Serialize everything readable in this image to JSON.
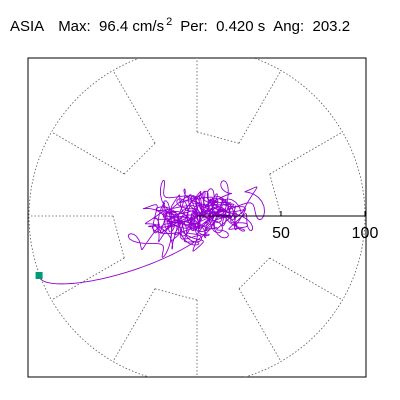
{
  "header": {
    "station": "ASIA",
    "max_label": "Max:",
    "max_value": "96.4",
    "max_unit": "cm/s",
    "max_unit_exp": "2",
    "per_label": "Per:",
    "per_value": "0.420 s",
    "ang_label": "Ang:",
    "ang_value": "203.2"
  },
  "chart_data": {
    "type": "polar-orbit",
    "radial_range": [
      0,
      100
    ],
    "radial_tick_labels": [
      "50",
      "100"
    ],
    "angular_gridlines_deg": [
      0,
      30,
      60,
      90,
      120,
      150,
      180,
      210,
      240,
      270,
      300,
      330
    ],
    "grid": true,
    "orbit_color": "#9400d3",
    "marker_color": "#009977",
    "axis_color": "#000000",
    "grid_color": "#555555",
    "orbit": {
      "duration_s": 40,
      "samples": 1400,
      "components": [
        {
          "ax": 28,
          "ay": 12,
          "freq_hz": 0.11,
          "phase_x": 0.0,
          "phase_y": 1.1,
          "decay": 0.022
        },
        {
          "ax": 18,
          "ay": 9,
          "freq_hz": 0.27,
          "phase_x": 1.7,
          "phase_y": 0.5,
          "decay": 0.045
        },
        {
          "ax": 7,
          "ay": 5,
          "freq_hz": 0.73,
          "phase_x": 2.3,
          "phase_y": 0.9,
          "decay": 0.012
        },
        {
          "ax": 5,
          "ay": 6,
          "freq_hz": 1.61,
          "phase_x": 0.4,
          "phase_y": 2.7,
          "decay": 0.008
        },
        {
          "ax": 3,
          "ay": 3,
          "freq_hz": 3.05,
          "phase_x": 1.2,
          "phase_y": 0.3,
          "decay": 0.004
        }
      ],
      "end_point": [
        -94,
        -35.4
      ]
    }
  }
}
